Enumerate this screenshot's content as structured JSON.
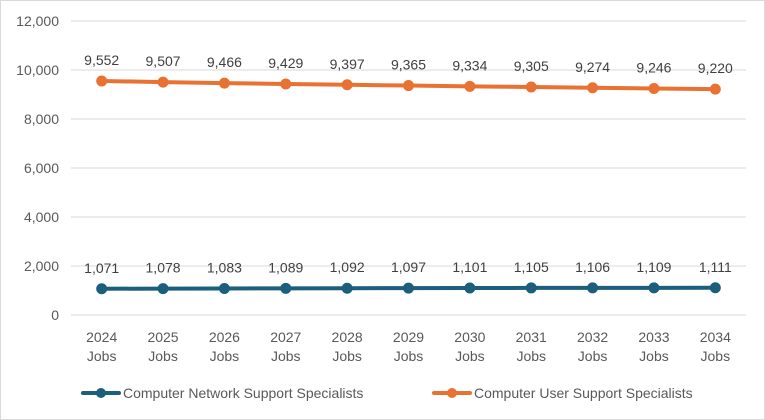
{
  "chart_data": {
    "type": "line",
    "title": "",
    "xlabel": "",
    "ylabel": "",
    "categories": [
      "2024 Jobs",
      "2025 Jobs",
      "2026 Jobs",
      "2027 Jobs",
      "2028 Jobs",
      "2029 Jobs",
      "2030 Jobs",
      "2031 Jobs",
      "2032 Jobs",
      "2033 Jobs",
      "2034 Jobs"
    ],
    "ylim": [
      0,
      12000
    ],
    "yticks": [
      0,
      2000,
      4000,
      6000,
      8000,
      10000,
      12000
    ],
    "ytick_labels": [
      "0",
      "2,000",
      "4,000",
      "6,000",
      "8,000",
      "10,000",
      "12,000"
    ],
    "grid": true,
    "legend_position": "bottom",
    "series": [
      {
        "name": "Computer Network Support Specialists",
        "color": "#1b5e7e",
        "values": [
          1071,
          1078,
          1083,
          1089,
          1092,
          1097,
          1101,
          1105,
          1106,
          1109,
          1111
        ],
        "labels": [
          "1,071",
          "1,078",
          "1,083",
          "1,089",
          "1,092",
          "1,097",
          "1,101",
          "1,105",
          "1,106",
          "1,109",
          "1,111"
        ]
      },
      {
        "name": "Computer User Support Specialists",
        "color": "#e97132",
        "values": [
          9552,
          9507,
          9466,
          9429,
          9397,
          9365,
          9334,
          9305,
          9274,
          9246,
          9220
        ],
        "labels": [
          "9,552",
          "9,507",
          "9,466",
          "9,429",
          "9,397",
          "9,365",
          "9,334",
          "9,305",
          "9,274",
          "9,246",
          "9,220"
        ]
      }
    ]
  }
}
